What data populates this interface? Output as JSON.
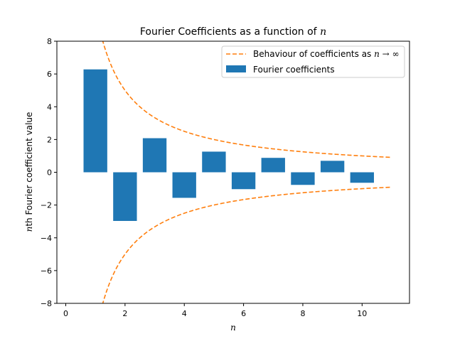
{
  "chart_data": {
    "type": "bar",
    "title_text": "Fourier Coefficients as a function of",
    "title_var": "n",
    "xlabel": "n",
    "ylabel_var": "n",
    "ylabel_text": "th Fourier coefficient value",
    "xlim": [
      -0.3,
      11.6
    ],
    "ylim": [
      -8,
      8
    ],
    "xticks": [
      0,
      2,
      4,
      6,
      8,
      10
    ],
    "yticks": [
      -8,
      -6,
      -4,
      -2,
      0,
      2,
      4,
      6,
      8
    ],
    "xtick_labels": [
      "0",
      "2",
      "4",
      "6",
      "8",
      "10"
    ],
    "ytick_labels": [
      "−8",
      "−6",
      "−4",
      "−2",
      "0",
      "2",
      "4",
      "6",
      "8"
    ],
    "bar_series": {
      "name": "Fourier coefficients",
      "color": "#1f77b4",
      "bar_width": 0.8,
      "x": [
        1,
        2,
        3,
        4,
        5,
        6,
        7,
        8,
        9,
        10
      ],
      "values": [
        6.28,
        -2.97,
        2.08,
        -1.56,
        1.26,
        -1.03,
        0.88,
        -0.77,
        0.7,
        -0.64
      ]
    },
    "envelope_series": {
      "name_text": "Behaviour of coefficients as",
      "name_math": "n → ∞",
      "color": "#ff7f0e",
      "style": "dashed",
      "x_start": 1.0,
      "x_end": 11.0,
      "formula_constant": 10
    },
    "legend_placement": "top-right",
    "grid": false
  }
}
